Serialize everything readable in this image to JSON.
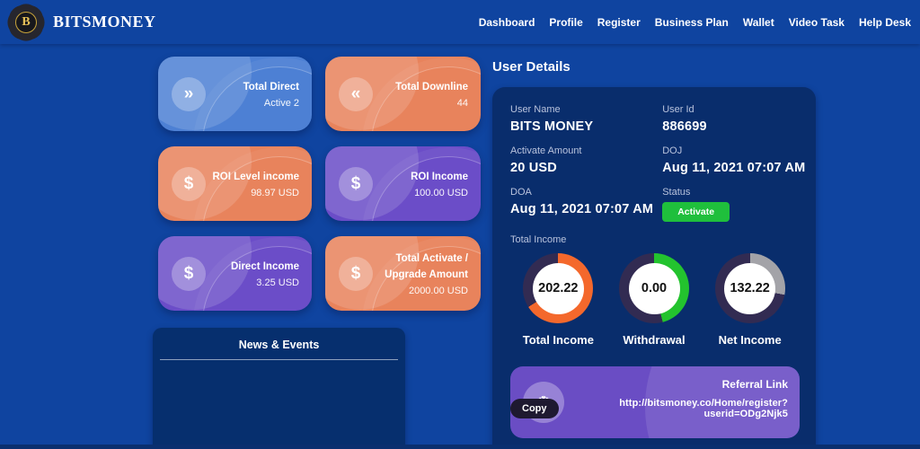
{
  "brand": {
    "name": "BITSMONEY",
    "logo_letter": "B"
  },
  "nav": {
    "items": [
      {
        "label": "Dashboard"
      },
      {
        "label": "Profile"
      },
      {
        "label": "Register"
      },
      {
        "label": "Business Plan"
      },
      {
        "label": "Wallet"
      },
      {
        "label": "Video Task"
      },
      {
        "label": "Help Desk"
      }
    ]
  },
  "stat_cards": [
    {
      "label": "Total Direct",
      "value": "Active 2",
      "icon": "chevrons-right",
      "color": "#4d80d4"
    },
    {
      "label": "Total Downline",
      "value": "44",
      "icon": "chevrons-left",
      "color": "#e8835c"
    },
    {
      "label": "ROI Level income",
      "value": "98.97 USD",
      "icon": "dollar",
      "color": "#e8835c"
    },
    {
      "label": "ROI Income",
      "value": "100.00 USD",
      "icon": "dollar",
      "color": "#6b4dc8"
    },
    {
      "label": "Direct Income",
      "value": "3.25 USD",
      "icon": "dollar",
      "color": "#6b4dc8"
    },
    {
      "label": "Total Activate / Upgrade Amount",
      "value": "2000.00 USD",
      "icon": "dollar",
      "color": "#e8835c"
    }
  ],
  "news": {
    "title": "News & Events"
  },
  "user_details": {
    "title": "User Details",
    "fields": [
      {
        "label": "User Name",
        "value": "BITS MONEY"
      },
      {
        "label": "User Id",
        "value": "886699"
      },
      {
        "label": "Activate Amount",
        "value": "20 USD"
      },
      {
        "label": "DOJ",
        "value": "Aug 11, 2021 07:07 AM"
      },
      {
        "label": "DOA",
        "value": "Aug 11, 2021 07:07 AM"
      },
      {
        "label": "Status",
        "value": "Activate"
      }
    ]
  },
  "income": {
    "section_label": "Total Income",
    "track_color": "#322b52",
    "gauges": [
      {
        "label": "Total Income",
        "value": "202.22",
        "percent": 66,
        "color": "#f4682c"
      },
      {
        "label": "Withdrawal",
        "value": "0.00",
        "percent": 46,
        "color": "#23c32e"
      },
      {
        "label": "Net Income",
        "value": "132.22",
        "percent": 28,
        "color": "#a3a3a8"
      }
    ]
  },
  "referral": {
    "title": "Referral Link",
    "copy_button": "Copy",
    "link": "http://bitsmoney.co/Home/register?userid=ODg2Njk5",
    "icon": "snowflake"
  },
  "colors": {
    "page_background": "#0f44a0",
    "panel_background": "#092d6c",
    "news_background": "#062f6e",
    "status_green": "#1fbf3c",
    "referral_purple": "#6a4dc4",
    "logo_gold": "#c9a43a"
  }
}
